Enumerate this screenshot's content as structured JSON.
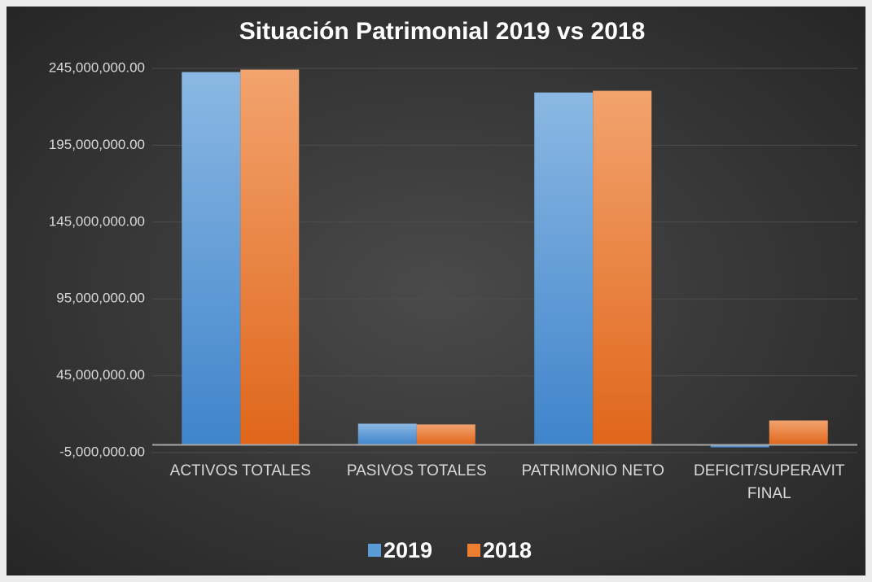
{
  "chart_data": {
    "type": "bar",
    "title": "Situación Patrimonial 2019 vs 2018",
    "categories": [
      "ACTIVOS TOTALES",
      "PASIVOS TOTALES",
      "PATRIMONIO NETO",
      "DEFICIT/SUPERAVIT FINAL"
    ],
    "series": [
      {
        "name": "2019",
        "color": "#5b9bd5",
        "values": [
          242600000,
          13800000,
          229300000,
          -1600000
        ]
      },
      {
        "name": "2018",
        "color": "#ed7d31",
        "values": [
          244200000,
          13300000,
          230400000,
          15900000
        ]
      }
    ],
    "ylim": [
      -5000000,
      245000000
    ],
    "yticks": [
      {
        "value": -5000000,
        "label": "-5,000,000.00"
      },
      {
        "value": 45000000,
        "label": "45,000,000.00"
      },
      {
        "value": 95000000,
        "label": "95,000,000.00"
      },
      {
        "value": 145000000,
        "label": "145,000,000.00"
      },
      {
        "value": 195000000,
        "label": "195,000,000.00"
      },
      {
        "value": 245000000,
        "label": "245,000,000.00"
      }
    ],
    "grid": true,
    "legend": "bottom"
  }
}
